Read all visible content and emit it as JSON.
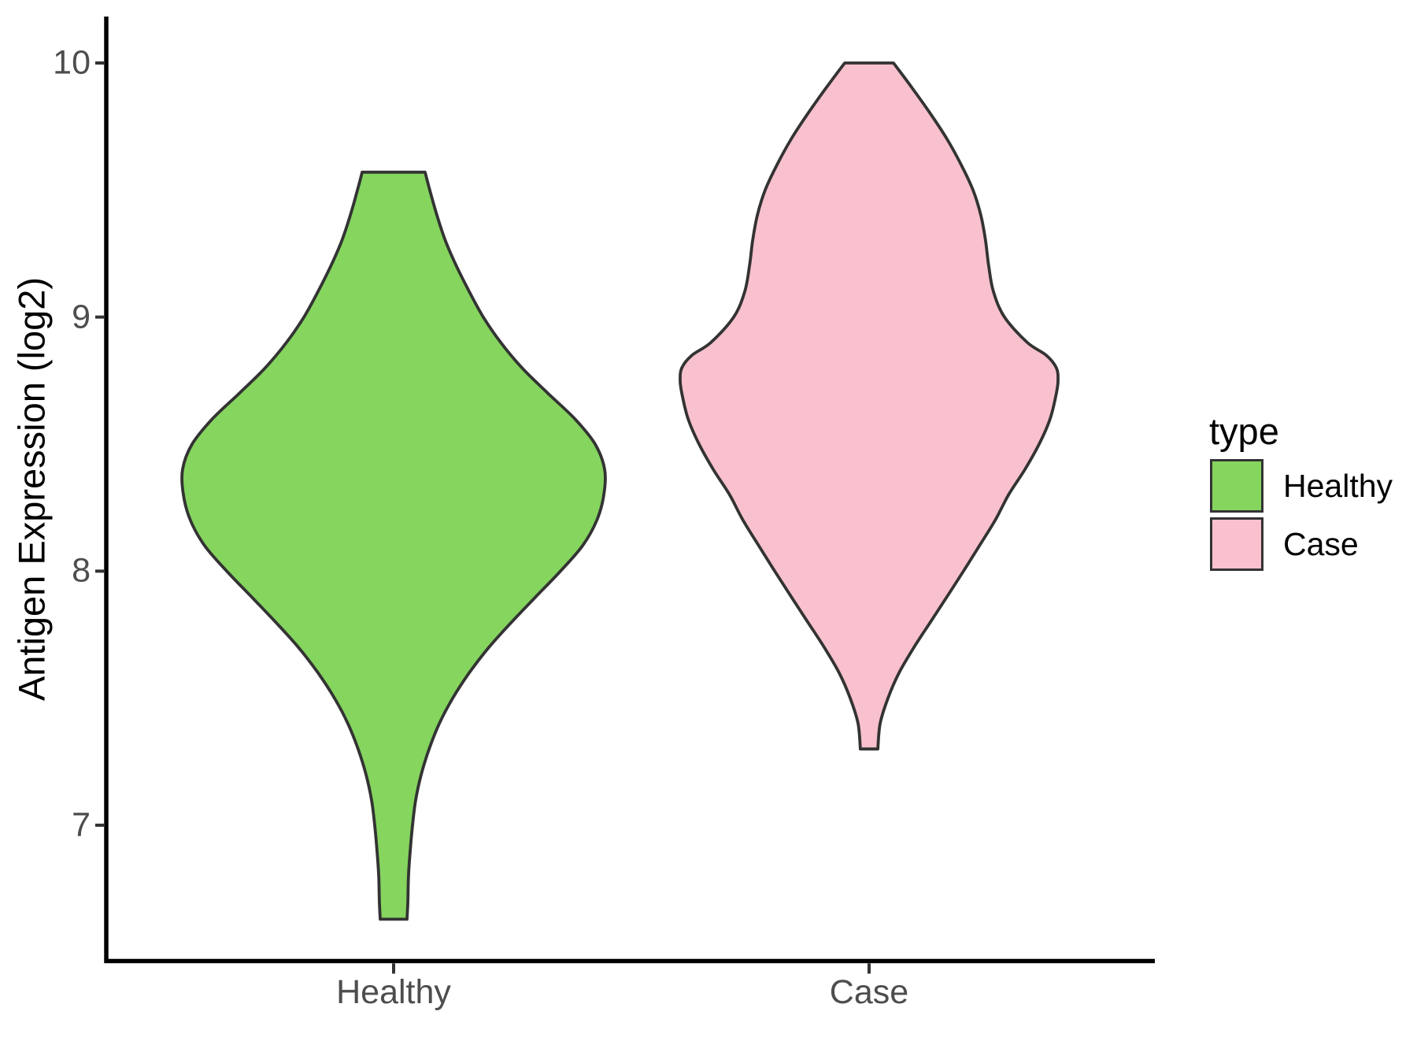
{
  "colors": {
    "background": "#FFFFFF",
    "axis_line": "#000000",
    "tick_mark": "#333333",
    "tick_label": "#4D4D4D",
    "text": "#000000",
    "violin_outline": "#333333"
  },
  "axes": {
    "y_title": "Antigen Expression (log2)",
    "y_tick_labels": [
      "10",
      "9",
      "8",
      "7"
    ],
    "x_tick_labels": [
      "Healthy",
      "Case"
    ]
  },
  "legend": {
    "title": "type",
    "position": "right",
    "entries": [
      {
        "label": "Healthy",
        "color": "#85D55E"
      },
      {
        "label": "Case",
        "color": "#F8C1CD"
      }
    ]
  },
  "chart_data": {
    "type": "violin",
    "title": "",
    "xlabel": "",
    "ylabel": "Antigen Expression (log2)",
    "categories": [
      "Healthy",
      "Case"
    ],
    "y_ticks": [
      10,
      9,
      8,
      7
    ],
    "ylim": [
      6.47,
      10.19
    ],
    "grid": false,
    "legend_title": "type",
    "series": [
      {
        "name": "Healthy",
        "fill": "#85D55E",
        "value_range": [
          6.63,
          9.57
        ],
        "peak_density_value": 8.4,
        "density_profile": [
          [
            9.57,
            0.148
          ],
          [
            9.5,
            0.17
          ],
          [
            9.4,
            0.204
          ],
          [
            9.3,
            0.244
          ],
          [
            9.2,
            0.296
          ],
          [
            9.1,
            0.356
          ],
          [
            9.0,
            0.422
          ],
          [
            8.9,
            0.504
          ],
          [
            8.8,
            0.604
          ],
          [
            8.7,
            0.726
          ],
          [
            8.6,
            0.852
          ],
          [
            8.5,
            0.948
          ],
          [
            8.4,
            0.993
          ],
          [
            8.3,
            0.989
          ],
          [
            8.2,
            0.956
          ],
          [
            8.1,
            0.889
          ],
          [
            8.0,
            0.785
          ],
          [
            7.9,
            0.67
          ],
          [
            7.8,
            0.556
          ],
          [
            7.7,
            0.448
          ],
          [
            7.6,
            0.356
          ],
          [
            7.5,
            0.278
          ],
          [
            7.4,
            0.215
          ],
          [
            7.3,
            0.167
          ],
          [
            7.2,
            0.13
          ],
          [
            7.1,
            0.104
          ],
          [
            7.0,
            0.089
          ],
          [
            6.9,
            0.078
          ],
          [
            6.8,
            0.07
          ],
          [
            6.7,
            0.067
          ],
          [
            6.63,
            0.063
          ]
        ]
      },
      {
        "name": "Case",
        "fill": "#F8C1CD",
        "value_range": [
          7.3,
          10.0
        ],
        "peak_density_value": 8.75,
        "density_profile": [
          [
            10.0,
            0.115
          ],
          [
            9.9,
            0.204
          ],
          [
            9.8,
            0.289
          ],
          [
            9.7,
            0.367
          ],
          [
            9.6,
            0.433
          ],
          [
            9.5,
            0.489
          ],
          [
            9.4,
            0.526
          ],
          [
            9.3,
            0.548
          ],
          [
            9.2,
            0.563
          ],
          [
            9.1,
            0.585
          ],
          [
            9.0,
            0.637
          ],
          [
            8.9,
            0.744
          ],
          [
            8.85,
            0.833
          ],
          [
            8.8,
            0.881
          ],
          [
            8.75,
            0.889
          ],
          [
            8.7,
            0.881
          ],
          [
            8.6,
            0.852
          ],
          [
            8.5,
            0.8
          ],
          [
            8.4,
            0.733
          ],
          [
            8.3,
            0.656
          ],
          [
            8.2,
            0.593
          ],
          [
            8.1,
            0.519
          ],
          [
            8.0,
            0.444
          ],
          [
            7.9,
            0.367
          ],
          [
            7.8,
            0.289
          ],
          [
            7.7,
            0.211
          ],
          [
            7.6,
            0.141
          ],
          [
            7.5,
            0.089
          ],
          [
            7.4,
            0.052
          ],
          [
            7.3,
            0.041
          ]
        ]
      }
    ]
  }
}
